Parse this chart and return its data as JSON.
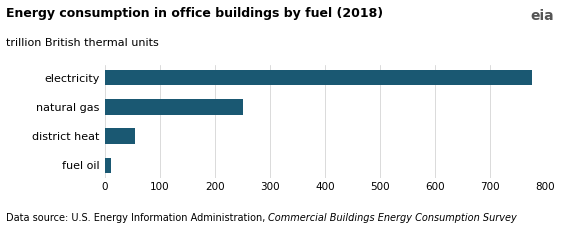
{
  "title": "Energy consumption in office buildings by fuel (2018)",
  "subtitle": "trillion British thermal units",
  "categories": [
    "fuel oil",
    "district heat",
    "natural gas",
    "electricity"
  ],
  "values": [
    10,
    55,
    250,
    775
  ],
  "bar_color": "#1a5872",
  "xlim": [
    0,
    800
  ],
  "xticks": [
    0,
    100,
    200,
    300,
    400,
    500,
    600,
    700,
    800
  ],
  "footnote_normal": "Data source: U.S. Energy Information Administration, ",
  "footnote_italic": "Commercial Buildings Energy Consumption Survey",
  "background_color": "#ffffff",
  "bar_height": 0.52,
  "title_fontsize": 9,
  "subtitle_fontsize": 8,
  "tick_fontsize": 7.5,
  "ylabel_fontsize": 8,
  "footnote_fontsize": 7
}
